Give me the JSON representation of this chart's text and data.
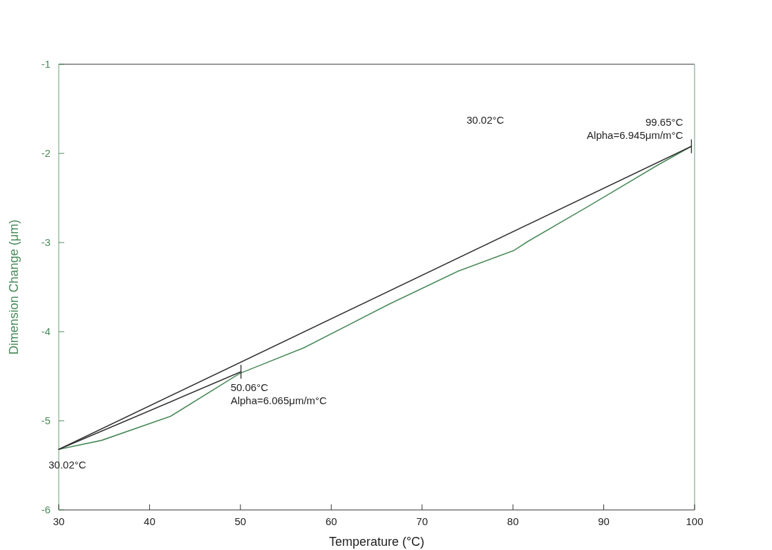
{
  "chart_data": {
    "type": "line",
    "xlabel": "Temperature (°C)",
    "ylabel": "Dimension Change (μm)",
    "xlim": [
      30,
      100
    ],
    "xticks": [
      30,
      40,
      50,
      60,
      70,
      80,
      90,
      100
    ],
    "ylim": [
      -6,
      -1
    ],
    "yticks": [
      -6,
      -5,
      -4,
      -3,
      -2,
      -1
    ],
    "grid": false,
    "marker": "none",
    "line_style": "solid",
    "series": [
      {
        "color": "#4a8a5a",
        "x": [
          30.02,
          34.7,
          42.3,
          49.9,
          57.0,
          66.4,
          74.0,
          80.1,
          81.6,
          88.2,
          95.8,
          99.65
        ],
        "values": [
          -5.32,
          -5.22,
          -4.95,
          -4.47,
          -4.18,
          -3.69,
          -3.32,
          -3.09,
          -2.99,
          -2.6,
          -2.14,
          -1.92
        ]
      },
      {
        "color": "#333333",
        "x": [
          30.02,
          99.65
        ],
        "values": [
          -5.32,
          -1.92
        ]
      },
      {
        "color": "#333333",
        "x": [
          30.02,
          50.06
        ],
        "values": [
          -5.32,
          -4.45
        ]
      }
    ],
    "annotations": [
      {
        "text": "30.02°C",
        "x": 30.02,
        "y": -5.32
      },
      {
        "text": "50.06°C\nAlpha=6.065μm/m°C",
        "x": 50.06,
        "y": -4.45
      },
      {
        "text": "99.65°C\nAlpha=6.945μm/m°C",
        "x": 99.65,
        "y": -1.92
      },
      "30.02°C"
    ]
  }
}
